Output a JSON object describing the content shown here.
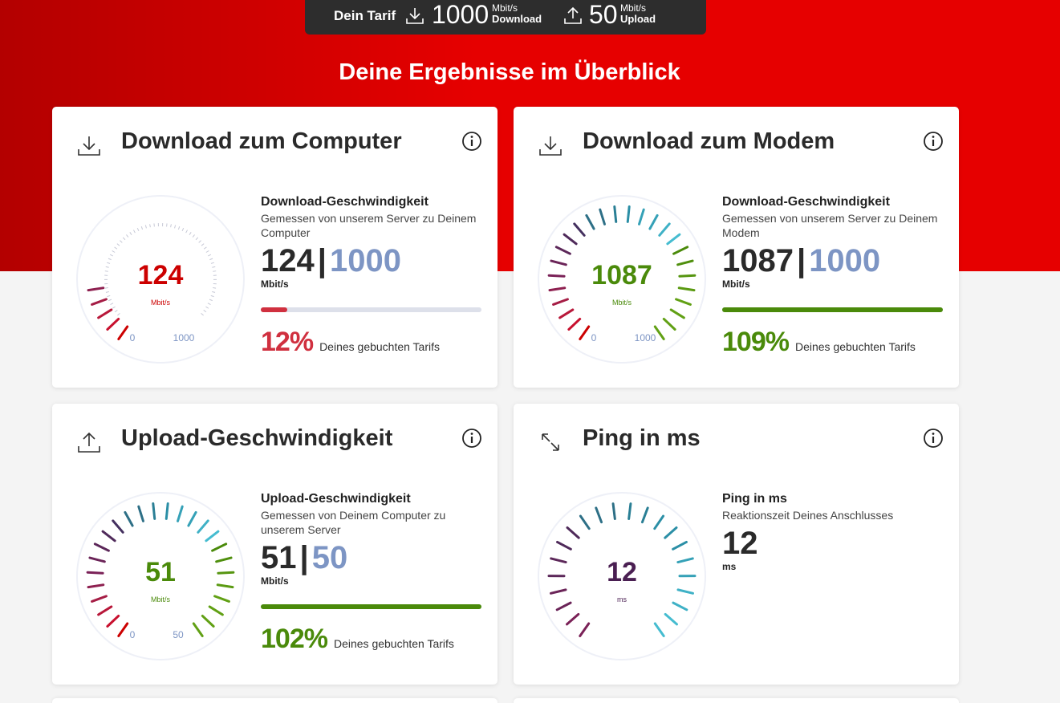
{
  "tariff": {
    "label": "Dein Tarif",
    "download_value": "1000",
    "download_unit": "Mbit/s",
    "download_label": "Download",
    "upload_value": "50",
    "upload_unit": "Mbit/s",
    "upload_label": "Upload"
  },
  "headline": "Deine Ergebnisse im Überblick",
  "colors": {
    "brand_red": "#e60000",
    "dark_bar": "#2d2d2d",
    "good_green": "#4a8a0a",
    "bad_red": "#d0303f",
    "tariff_blue": "#7d95c4"
  },
  "cards": {
    "download_computer": {
      "title": "Download zum Computer",
      "icon": "download-icon",
      "stat_title": "Download-Geschwindigkeit",
      "stat_sub": "Gemessen von unserem Server zu Deinem Computer",
      "measured": "124",
      "tariff": "1000",
      "sep": "|",
      "unit": "Mbit/s",
      "gauge_value": "124",
      "gauge_unit": "Mbit/s",
      "gauge_min": "0",
      "gauge_max": "1000",
      "percent": "12%",
      "percent_text": "Deines gebuchten Tarifs",
      "fraction": 0.12,
      "status": "bad"
    },
    "download_modem": {
      "title": "Download zum Modem",
      "icon": "download-icon",
      "stat_title": "Download-Geschwindigkeit",
      "stat_sub": "Gemessen von unserem Server zu Deinem Modem",
      "measured": "1087",
      "tariff": "1000",
      "sep": "|",
      "unit": "Mbit/s",
      "gauge_value": "1087",
      "gauge_unit": "Mbit/s",
      "gauge_min": "0",
      "gauge_max": "1000",
      "percent": "109%",
      "percent_text": "Deines gebuchten Tarifs",
      "fraction": 1.0,
      "status": "good"
    },
    "upload": {
      "title": "Upload-Geschwindigkeit",
      "icon": "upload-icon",
      "stat_title": "Upload-Geschwindigkeit",
      "stat_sub": "Gemessen von Deinem Computer zu unserem Server",
      "measured": "51",
      "tariff": "50",
      "sep": "|",
      "unit": "Mbit/s",
      "gauge_value": "51",
      "gauge_unit": "Mbit/s",
      "gauge_min": "0",
      "gauge_max": "50",
      "percent": "102%",
      "percent_text": "Deines gebuchten Tarifs",
      "fraction": 1.0,
      "status": "good"
    },
    "ping": {
      "title": "Ping in ms",
      "icon": "ping-arrows-icon",
      "stat_title": "Ping in ms",
      "stat_sub": "Reaktionszeit Deines Anschlusses",
      "measured": "12",
      "unit": "ms",
      "gauge_value": "12",
      "gauge_unit": "ms"
    }
  }
}
